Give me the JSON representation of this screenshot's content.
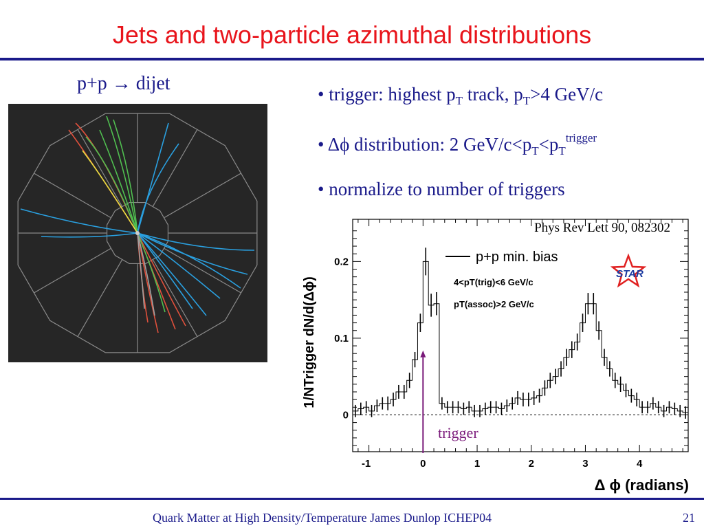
{
  "slide": {
    "title": "Jets and two-particle azimuthal distributions",
    "subtitle": "p+p → dijet",
    "bullets": [
      {
        "parts": [
          [
            "t",
            "• trigger: highest p"
          ],
          [
            "sub",
            "T"
          ],
          [
            "t",
            " track, p"
          ],
          [
            "sub",
            "T"
          ],
          [
            "t",
            ">4 GeV/c"
          ]
        ]
      },
      {
        "parts": [
          [
            "t",
            "• Δϕ distribution: 2 GeV/c<p"
          ],
          [
            "sub",
            "T"
          ],
          [
            "t",
            "<p"
          ],
          [
            "sub",
            "T"
          ],
          [
            "sup",
            "trigger"
          ]
        ]
      },
      {
        "parts": [
          [
            "t",
            "• normalize to number of triggers"
          ]
        ]
      }
    ],
    "footer": "Quark Matter at High Density/Temperature James Dunlop ICHEP04",
    "page_number": "21",
    "colors": {
      "title": "#e8141b",
      "text": "#1a1a8a",
      "rule": "#1a1a8a"
    }
  },
  "event_display": {
    "icon": "star-detector-event-display",
    "track_colors": [
      "#2aa0e0",
      "#e0503c",
      "#50c050",
      "#e8e040",
      "#a0a0a0"
    ]
  },
  "chart_data": {
    "type": "line",
    "style": "step histogram with error bars",
    "citation": "Phys Rev Lett 90, 082302",
    "legend": {
      "label": "p+p min. bias",
      "lines": [
        "4<pT(trig)<6 GeV/c",
        "pT(assoc)>2 GeV/c"
      ]
    },
    "logo": "STAR",
    "ylabel": "1/NTrigger dN/d(Δϕ)",
    "xlabel": "Δ ϕ (radians)",
    "xticks": [
      "-1",
      "0",
      "1",
      "2",
      "3",
      "4"
    ],
    "yticks": [
      "0",
      "0.1",
      "0.2"
    ],
    "xlim": [
      -1.3,
      4.9
    ],
    "ylim": [
      -0.048,
      0.255
    ],
    "zero_line": "dashed",
    "annotation": {
      "text": "trigger",
      "x": 0.0
    },
    "series": [
      {
        "x": [
          -1.25,
          -1.15,
          -1.05,
          -0.95,
          -0.85,
          -0.75,
          -0.65,
          -0.55,
          -0.45,
          -0.35,
          -0.25,
          -0.15,
          -0.05,
          0.05,
          0.15,
          0.25,
          0.35,
          0.45,
          0.55,
          0.65,
          0.75,
          0.85,
          0.95,
          1.05,
          1.15,
          1.25,
          1.35,
          1.45,
          1.55,
          1.65,
          1.75,
          1.85,
          1.95,
          2.05,
          2.15,
          2.25,
          2.35,
          2.45,
          2.55,
          2.65,
          2.75,
          2.85,
          2.95,
          3.05,
          3.15,
          3.25,
          3.35,
          3.45,
          3.55,
          3.65,
          3.75,
          3.85,
          3.95,
          4.05,
          4.15,
          4.25,
          4.35,
          4.45,
          4.55,
          4.65,
          4.75,
          4.85
        ],
        "y": [
          0.005,
          0.008,
          0.01,
          0.005,
          0.012,
          0.015,
          0.015,
          0.02,
          0.03,
          0.03,
          0.045,
          0.072,
          0.12,
          0.2,
          0.143,
          0.145,
          0.015,
          0.01,
          0.01,
          0.01,
          0.008,
          0.01,
          0.005,
          0.005,
          0.008,
          0.01,
          0.01,
          0.008,
          0.012,
          0.015,
          0.022,
          0.02,
          0.02,
          0.022,
          0.025,
          0.035,
          0.045,
          0.05,
          0.06,
          0.075,
          0.085,
          0.095,
          0.12,
          0.145,
          0.145,
          0.11,
          0.075,
          0.06,
          0.045,
          0.04,
          0.032,
          0.025,
          0.02,
          0.01,
          0.01,
          0.015,
          0.01,
          0.005,
          0.01,
          0.008,
          0.005,
          0.003
        ],
        "errors": [
          0.008,
          0.008,
          0.008,
          0.008,
          0.008,
          0.008,
          0.009,
          0.009,
          0.009,
          0.009,
          0.01,
          0.01,
          0.012,
          0.018,
          0.015,
          0.015,
          0.008,
          0.008,
          0.008,
          0.008,
          0.008,
          0.008,
          0.008,
          0.008,
          0.008,
          0.008,
          0.008,
          0.008,
          0.008,
          0.008,
          0.009,
          0.009,
          0.009,
          0.009,
          0.009,
          0.01,
          0.01,
          0.01,
          0.01,
          0.011,
          0.011,
          0.011,
          0.012,
          0.014,
          0.014,
          0.012,
          0.011,
          0.01,
          0.01,
          0.01,
          0.009,
          0.009,
          0.009,
          0.008,
          0.008,
          0.008,
          0.008,
          0.008,
          0.008,
          0.008,
          0.008,
          0.008
        ]
      }
    ]
  }
}
